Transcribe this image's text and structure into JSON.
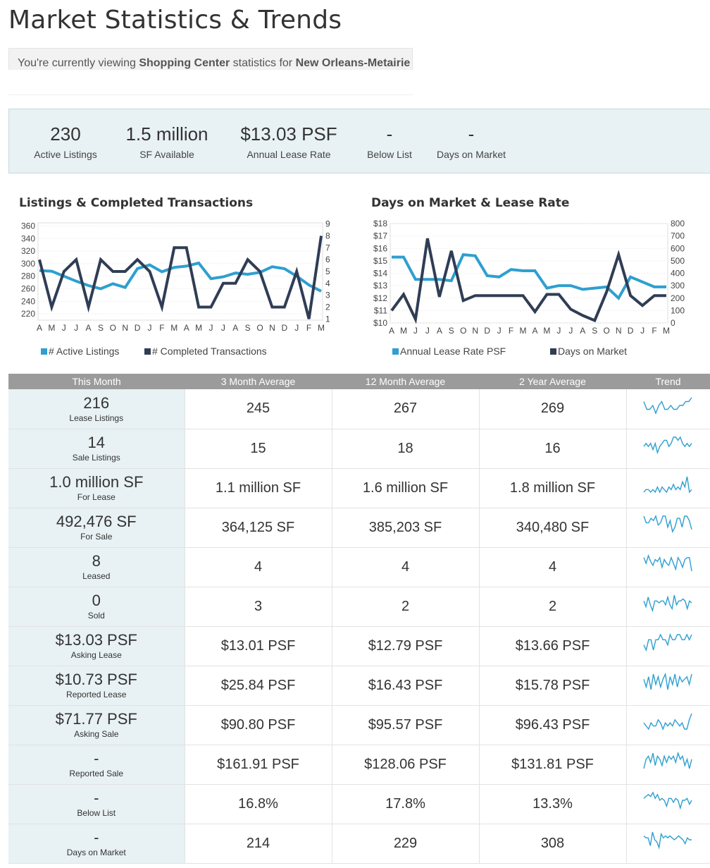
{
  "title": "Market Statistics & Trends",
  "viewing": {
    "prefix": "You're currently viewing ",
    "property_type": "Shopping Center",
    "middle": " statistics for ",
    "market": "New Orleans-Metairie"
  },
  "summary": [
    {
      "value": "230",
      "label": "Active Listings"
    },
    {
      "value": "1.5 million",
      "label": "SF Available"
    },
    {
      "value": "$13.03 PSF",
      "label": "Annual Lease Rate"
    },
    {
      "value": "-",
      "label": "Below List"
    },
    {
      "value": "-",
      "label": "Days on Market"
    }
  ],
  "colors": {
    "primary": "#2e9fd0",
    "secondary": "#2f3d55",
    "panel": "#e8f1f3",
    "header": "#9b9b9b"
  },
  "chart_data": [
    {
      "type": "line",
      "title": "Listings & Completed Transactions",
      "categories": [
        "A",
        "M",
        "J",
        "J",
        "A",
        "S",
        "O",
        "N",
        "D",
        "J",
        "F",
        "M",
        "A",
        "M",
        "J",
        "J",
        "A",
        "S",
        "O",
        "N",
        "D",
        "J",
        "F",
        "M"
      ],
      "y_left": {
        "ticks": [
          "220",
          "240",
          "260",
          "280",
          "300",
          "320",
          "340",
          "360"
        ],
        "ylim": [
          210,
          365
        ]
      },
      "y_right": {
        "ticks": [
          "1",
          "2",
          "3",
          "4",
          "5",
          "6",
          "7",
          "8",
          "9"
        ],
        "ylim": [
          0.9,
          9.1
        ]
      },
      "series": [
        {
          "name": "# Active Listings",
          "axis": "left",
          "values": [
            289,
            288,
            280,
            272,
            265,
            260,
            268,
            262,
            292,
            298,
            287,
            294,
            296,
            301,
            276,
            279,
            285,
            283,
            286,
            295,
            292,
            280,
            266,
            256
          ]
        },
        {
          "name": "# Completed Transactions",
          "axis": "right",
          "values": [
            6,
            2,
            5,
            6,
            2,
            6,
            5,
            5,
            6,
            5,
            2,
            7,
            7,
            2,
            2,
            4,
            4,
            6,
            5,
            2,
            2,
            5,
            1,
            8
          ]
        }
      ],
      "grid": true,
      "legend": "bottom"
    },
    {
      "type": "line",
      "title": "Days on Market & Lease Rate",
      "categories": [
        "A",
        "M",
        "J",
        "J",
        "A",
        "S",
        "O",
        "N",
        "D",
        "J",
        "F",
        "M",
        "A",
        "M",
        "J",
        "J",
        "A",
        "S",
        "O",
        "N",
        "D",
        "J",
        "F",
        "M"
      ],
      "y_left": {
        "ticks": [
          "$10",
          "$11",
          "$12",
          "$13",
          "$14",
          "$15",
          "$16",
          "$17",
          "$18"
        ],
        "ylim": [
          10,
          18
        ]
      },
      "y_right": {
        "ticks": [
          "0",
          "100",
          "200",
          "300",
          "400",
          "500",
          "600",
          "700",
          "800"
        ],
        "ylim": [
          0,
          800
        ]
      },
      "series": [
        {
          "name": "Annual Lease Rate PSF",
          "axis": "left",
          "values": [
            15.3,
            15.3,
            13.5,
            13.5,
            13.5,
            13.4,
            15.5,
            15.4,
            13.8,
            13.7,
            14.3,
            14.2,
            14.2,
            12.8,
            13.0,
            13.0,
            12.7,
            12.8,
            12.9,
            12.0,
            13.7,
            13.3,
            12.9,
            12.9
          ]
        },
        {
          "name": "Days on Market",
          "axis": "right",
          "values": [
            100,
            230,
            30,
            680,
            210,
            580,
            180,
            220,
            220,
            220,
            220,
            220,
            90,
            230,
            230,
            110,
            60,
            20,
            250,
            550,
            220,
            140,
            220,
            220
          ]
        }
      ],
      "grid": true,
      "legend": "bottom"
    }
  ],
  "table": {
    "headers": [
      "This Month",
      "3 Month Average",
      "12 Month Average",
      "2 Year Average",
      "Trend"
    ],
    "rows": [
      {
        "value": "216",
        "label": "Lease Listings",
        "m3": "245",
        "m12": "267",
        "y2": "269",
        "trend": [
          5,
          3,
          3,
          4,
          2,
          4,
          5,
          3,
          3,
          4,
          3,
          3,
          4,
          4,
          5,
          5,
          6
        ]
      },
      {
        "value": "14",
        "label": "Sale Listings",
        "m3": "15",
        "m12": "18",
        "y2": "16",
        "trend": [
          4,
          5,
          4,
          5,
          3,
          5,
          2,
          4,
          5,
          6,
          6,
          4,
          5,
          7,
          7,
          6,
          7,
          5,
          4,
          5,
          4,
          5
        ]
      },
      {
        "value": "1.0 million SF",
        "label": "For Lease",
        "m3": "1.1 million SF",
        "m12": "1.6 million SF",
        "y2": "1.8 million SF",
        "trend": [
          3,
          4,
          4,
          3,
          4,
          3,
          5,
          3,
          5,
          4,
          3,
          5,
          4,
          6,
          4,
          5,
          4,
          7,
          5,
          9,
          3,
          4
        ]
      },
      {
        "value": "492,476 SF",
        "label": "For Sale",
        "m3": "364,125 SF",
        "m12": "385,203 SF",
        "y2": "340,480 SF",
        "trend": [
          9,
          6,
          6,
          8,
          7,
          9,
          5,
          6,
          9,
          9,
          4,
          7,
          2,
          4,
          8,
          8,
          4,
          9,
          9,
          7,
          3
        ]
      },
      {
        "value": "8",
        "label": "Leased",
        "m3": "4",
        "m12": "4",
        "y2": "4",
        "trend": [
          8,
          5,
          9,
          6,
          4,
          7,
          6,
          8,
          3,
          7,
          5,
          4,
          8,
          5,
          2,
          8,
          6,
          3,
          7,
          8,
          8,
          1
        ]
      },
      {
        "value": "0",
        "label": "Sold",
        "m3": "3",
        "m12": "2",
        "y2": "2",
        "trend": [
          6,
          3,
          8,
          4,
          1,
          6,
          6,
          5,
          6,
          6,
          4,
          8,
          4,
          2,
          9,
          4,
          6,
          6,
          7,
          6,
          2,
          6,
          5
        ]
      },
      {
        "value": "$13.03 PSF",
        "label": "Asking Lease",
        "m3": "$13.01 PSF",
        "m12": "$12.79 PSF",
        "y2": "$13.66 PSF",
        "trend": [
          4,
          3,
          5,
          5,
          3,
          5,
          5,
          6,
          5,
          5,
          4,
          6,
          5,
          5,
          6,
          6,
          5,
          5,
          6,
          5,
          6
        ]
      },
      {
        "value": "$10.73 PSF",
        "label": "Reported Lease",
        "m3": "$25.84 PSF",
        "m12": "$16.43 PSF",
        "y2": "$15.78 PSF",
        "trend": [
          5,
          2,
          6,
          1,
          7,
          3,
          6,
          2,
          5,
          7,
          1,
          6,
          3,
          7,
          2,
          6,
          4,
          5,
          6,
          3,
          7
        ]
      },
      {
        "value": "$71.77 PSF",
        "label": "Asking Sale",
        "m3": "$90.80 PSF",
        "m12": "$95.57 PSF",
        "y2": "$96.43 PSF",
        "trend": [
          5,
          4,
          3,
          5,
          4,
          4,
          6,
          5,
          3,
          5,
          4,
          5,
          4,
          6,
          5,
          4,
          5,
          3,
          3,
          6,
          8
        ]
      },
      {
        "value": "-",
        "label": "Reported Sale",
        "m3": "$161.91 PSF",
        "m12": "$128.06 PSF",
        "y2": "$131.81 PSF",
        "trend": [
          2,
          5,
          6,
          4,
          7,
          3,
          6,
          5,
          3,
          6,
          4,
          6,
          5,
          6,
          4,
          7,
          5,
          6,
          3,
          5,
          2,
          5
        ]
      },
      {
        "value": "-",
        "label": "Below List",
        "m3": "16.8%",
        "m12": "17.8%",
        "y2": "13.3%",
        "trend": [
          6,
          7,
          8,
          7,
          9,
          6,
          8,
          5,
          6,
          5,
          2,
          6,
          6,
          4,
          6,
          5,
          1,
          5,
          5,
          6,
          3,
          5
        ]
      },
      {
        "value": "-",
        "label": "Days on Market",
        "m3": "214",
        "m12": "229",
        "y2": "308",
        "trend": [
          7,
          6,
          6,
          2,
          9,
          5,
          4,
          1,
          8,
          6,
          7,
          6,
          7,
          6,
          5,
          6,
          7,
          6,
          5,
          3,
          6,
          5,
          5
        ]
      }
    ]
  }
}
